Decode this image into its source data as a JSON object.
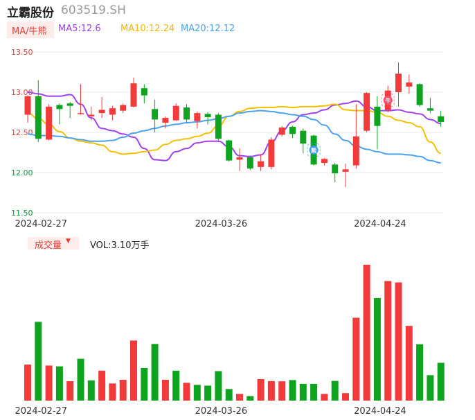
{
  "stock": {
    "name": "立霸股份",
    "code": "603519.SH"
  },
  "ma_legend": {
    "selector": "MA/牛熊",
    "ma5": "MA5:12.6",
    "ma10": "MA10:12.24",
    "ma20": "MA20:12.12"
  },
  "volume_legend": {
    "selector": "成交量",
    "caret": "▼",
    "value": "VOL:3.10万手"
  },
  "colors": {
    "up": "#f23a3a",
    "down": "#0ea41f",
    "ma5": "#a040f0",
    "ma10": "#f5c000",
    "ma20": "#4aa3ee",
    "grid": "#e8e8e8",
    "axis_text_price": "#e0403a",
    "axis_text_low": "#0a9a3a"
  },
  "chart_data": [
    {
      "type": "candlestick",
      "title": "",
      "yticks": [
        "13.50",
        "13.00",
        "12.50",
        "12.00",
        "11.50"
      ],
      "ylim": [
        11.5,
        13.5
      ],
      "xticks": [
        {
          "index": 1,
          "label": "2024-02-27"
        },
        {
          "index": 18,
          "label": "2024-03-26"
        },
        {
          "index": 33,
          "label": "2024-04-24"
        }
      ],
      "markers": [
        {
          "index": 27,
          "text": "熊",
          "kind": "bear-icon"
        },
        {
          "index": 34,
          "text": "牛",
          "kind": "bull-icon"
        }
      ],
      "candles": [
        {
          "o": 12.72,
          "h": 12.96,
          "l": 12.62,
          "c": 12.95
        },
        {
          "o": 12.95,
          "h": 13.15,
          "l": 12.38,
          "c": 12.42
        },
        {
          "o": 12.41,
          "h": 12.85,
          "l": 12.4,
          "c": 12.82
        },
        {
          "o": 12.84,
          "h": 12.86,
          "l": 12.6,
          "c": 12.79
        },
        {
          "o": 12.86,
          "h": 12.88,
          "l": 12.68,
          "c": 12.83
        },
        {
          "o": 12.73,
          "h": 13.1,
          "l": 12.72,
          "c": 12.74
        },
        {
          "o": 12.7,
          "h": 12.82,
          "l": 12.65,
          "c": 12.72
        },
        {
          "o": 12.74,
          "h": 12.94,
          "l": 12.68,
          "c": 12.78
        },
        {
          "o": 12.72,
          "h": 12.83,
          "l": 12.65,
          "c": 12.8
        },
        {
          "o": 12.77,
          "h": 12.86,
          "l": 12.74,
          "c": 12.84
        },
        {
          "o": 12.82,
          "h": 13.18,
          "l": 12.81,
          "c": 13.11
        },
        {
          "o": 13.05,
          "h": 13.1,
          "l": 12.86,
          "c": 12.96
        },
        {
          "o": 12.79,
          "h": 12.91,
          "l": 12.5,
          "c": 12.66
        },
        {
          "o": 12.62,
          "h": 12.7,
          "l": 12.55,
          "c": 12.68
        },
        {
          "o": 12.65,
          "h": 12.86,
          "l": 12.64,
          "c": 12.83
        },
        {
          "o": 12.81,
          "h": 12.85,
          "l": 12.62,
          "c": 12.66
        },
        {
          "o": 12.64,
          "h": 12.76,
          "l": 12.55,
          "c": 12.74
        },
        {
          "o": 12.73,
          "h": 12.75,
          "l": 12.6,
          "c": 12.69
        },
        {
          "o": 12.72,
          "h": 12.74,
          "l": 12.38,
          "c": 12.42
        },
        {
          "o": 12.4,
          "h": 12.41,
          "l": 12.14,
          "c": 12.15
        },
        {
          "o": 12.16,
          "h": 12.3,
          "l": 12.02,
          "c": 12.19
        },
        {
          "o": 12.19,
          "h": 12.21,
          "l": 12.03,
          "c": 12.05
        },
        {
          "o": 12.07,
          "h": 12.23,
          "l": 12.02,
          "c": 12.14
        },
        {
          "o": 12.07,
          "h": 12.44,
          "l": 12.04,
          "c": 12.41
        },
        {
          "o": 12.47,
          "h": 12.58,
          "l": 12.45,
          "c": 12.56
        },
        {
          "o": 12.57,
          "h": 12.58,
          "l": 12.43,
          "c": 12.48
        },
        {
          "o": 12.52,
          "h": 12.55,
          "l": 12.24,
          "c": 12.36
        },
        {
          "o": 12.46,
          "h": 12.47,
          "l": 12.09,
          "c": 12.1
        },
        {
          "o": 12.12,
          "h": 12.18,
          "l": 12.09,
          "c": 12.17
        },
        {
          "o": 12.1,
          "h": 12.12,
          "l": 11.88,
          "c": 11.99
        },
        {
          "o": 12.01,
          "h": 12.11,
          "l": 11.82,
          "c": 12.04
        },
        {
          "o": 12.09,
          "h": 12.85,
          "l": 12.05,
          "c": 12.45
        },
        {
          "o": 12.52,
          "h": 13.0,
          "l": 12.5,
          "c": 12.99
        },
        {
          "o": 12.82,
          "h": 12.95,
          "l": 12.29,
          "c": 12.58
        },
        {
          "o": 12.78,
          "h": 13.08,
          "l": 12.75,
          "c": 13.02
        },
        {
          "o": 13.0,
          "h": 13.37,
          "l": 12.82,
          "c": 13.23
        },
        {
          "o": 13.07,
          "h": 13.22,
          "l": 12.98,
          "c": 13.12
        },
        {
          "o": 13.1,
          "h": 13.11,
          "l": 12.82,
          "c": 12.84
        },
        {
          "o": 12.8,
          "h": 12.93,
          "l": 12.74,
          "c": 12.77
        },
        {
          "o": 12.7,
          "h": 12.77,
          "l": 12.57,
          "c": 12.63
        }
      ],
      "series": [
        {
          "name": "MA5",
          "values": [
            13.0,
            12.98,
            12.95,
            12.95,
            12.97,
            12.85,
            12.68,
            12.55,
            12.52,
            12.48,
            12.44,
            12.3,
            12.16,
            12.15,
            12.26,
            12.3,
            12.37,
            12.39,
            12.39,
            12.32,
            12.21,
            12.2,
            12.22,
            12.38,
            12.52,
            12.63,
            12.72,
            12.74,
            12.78,
            12.84,
            12.86,
            12.89,
            12.82,
            12.77,
            12.77,
            12.78,
            12.75,
            12.73,
            12.66,
            12.61
          ]
        },
        {
          "name": "MA10",
          "values": [
            12.74,
            12.67,
            12.6,
            12.51,
            12.43,
            12.39,
            12.37,
            12.34,
            12.26,
            12.23,
            12.24,
            12.26,
            12.28,
            12.35,
            12.4,
            12.42,
            12.45,
            12.49,
            12.58,
            12.7,
            12.76,
            12.8,
            12.81,
            12.81,
            12.82,
            12.81,
            12.82,
            12.82,
            12.83,
            12.85,
            12.78,
            12.77,
            12.77,
            12.75,
            12.7,
            12.65,
            12.62,
            12.57,
            12.38,
            12.24
          ]
        },
        {
          "name": "MA20",
          "values": [
            12.48,
            12.46,
            12.46,
            12.45,
            12.43,
            12.41,
            12.39,
            12.39,
            12.4,
            12.44,
            12.49,
            12.52,
            12.55,
            12.58,
            12.6,
            12.62,
            12.63,
            12.65,
            12.67,
            12.7,
            12.74,
            12.76,
            12.77,
            12.76,
            12.74,
            12.72,
            12.7,
            12.66,
            12.59,
            12.48,
            12.4,
            12.33,
            12.29,
            12.26,
            12.23,
            12.23,
            12.22,
            12.2,
            12.15,
            12.12
          ]
        }
      ]
    },
    {
      "type": "bar",
      "title": "",
      "ylabel": "",
      "values": [
        2.65,
        5.8,
        2.58,
        2.52,
        1.43,
        3.08,
        1.49,
        2.2,
        1.26,
        1.53,
        4.42,
        2.4,
        4.17,
        1.53,
        2.2,
        1.31,
        1.16,
        1.1,
        2.17,
        0.85,
        0.49,
        0.33,
        1.58,
        1.44,
        1.42,
        1.51,
        1.23,
        1.23,
        0.49,
        1.45,
        0.55,
        6.1,
        10.0,
        7.55,
        8.8,
        8.7,
        5.5,
        4.15,
        1.87,
        2.78
      ],
      "directions": [
        "up",
        "down",
        "up",
        "down",
        "up",
        "down",
        "down",
        "up",
        "up",
        "up",
        "up",
        "down",
        "down",
        "up",
        "down",
        "up",
        "down",
        "down",
        "down",
        "down",
        "up",
        "down",
        "up",
        "up",
        "up",
        "down",
        "down",
        "down",
        "up",
        "down",
        "up",
        "up",
        "up",
        "down",
        "up",
        "up",
        "up",
        "down",
        "down",
        "down"
      ],
      "xticks": [
        {
          "index": 1,
          "label": "2024-02-27"
        },
        {
          "index": 18,
          "label": "2024-03-26"
        },
        {
          "index": 33,
          "label": "2024-04-24"
        }
      ]
    }
  ]
}
